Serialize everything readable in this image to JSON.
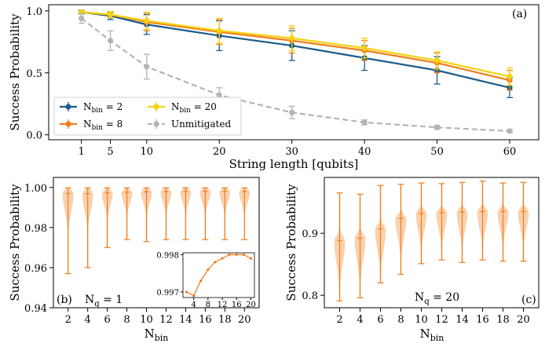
{
  "chart_data": [
    {
      "type": "line",
      "panel_label": "(a)",
      "xlabel": "String length [qubits]",
      "ylabel": "Success Probability",
      "x": [
        1,
        5,
        10,
        20,
        30,
        40,
        50,
        60
      ],
      "xticks": [
        "1",
        "5",
        "10",
        "20",
        "30",
        "40",
        "50",
        "60"
      ],
      "yticks": [
        "0.0",
        "0.5",
        "1.0"
      ],
      "ylim": [
        -0.04,
        1.05
      ],
      "xlim": [
        -3.5,
        64
      ],
      "legend": "bottom-left",
      "series": [
        {
          "name_main": "N",
          "name_sub": "bin",
          "name_rest": " = 2",
          "color": "#1a5c8c",
          "style": "solid",
          "values": [
            0.99,
            0.96,
            0.89,
            0.8,
            0.72,
            0.62,
            0.52,
            0.38
          ],
          "errors": [
            0.015,
            0.03,
            0.08,
            0.12,
            0.12,
            0.1,
            0.11,
            0.08
          ]
        },
        {
          "name_main": "N",
          "name_sub": "bin",
          "name_rest": " = 8",
          "color": "#f07d1a",
          "style": "solid",
          "values": [
            0.99,
            0.97,
            0.91,
            0.83,
            0.76,
            0.68,
            0.58,
            0.44
          ],
          "errors": [
            0.01,
            0.025,
            0.07,
            0.1,
            0.1,
            0.08,
            0.08,
            0.08
          ]
        },
        {
          "name_main": "N",
          "name_sub": "bin",
          "name_rest": " = 20",
          "color": "#f5d10f",
          "style": "solid",
          "values": [
            0.99,
            0.97,
            0.92,
            0.84,
            0.78,
            0.7,
            0.6,
            0.47
          ],
          "errors": [
            0.01,
            0.025,
            0.07,
            0.1,
            0.1,
            0.08,
            0.07,
            0.07
          ]
        },
        {
          "name_main": "Unmitigated",
          "name_sub": "",
          "name_rest": "",
          "color": "#b4b4b4",
          "style": "dashed",
          "values": [
            0.94,
            0.76,
            0.55,
            0.32,
            0.18,
            0.1,
            0.06,
            0.03
          ],
          "errors": [
            0.04,
            0.08,
            0.1,
            0.06,
            0.05,
            0.02,
            0.015,
            0.01
          ]
        }
      ]
    },
    {
      "type": "violin",
      "panel_label": "(b)",
      "annotation_main": "N",
      "annotation_sub": "q",
      "annotation_rest": " = 1",
      "xlabel_main": "N",
      "xlabel_sub": "bin",
      "ylabel": "Success Probability",
      "color": "#f07d1a",
      "fill": "#f9c9a0",
      "x": [
        2,
        4,
        6,
        8,
        10,
        12,
        14,
        16,
        18,
        20
      ],
      "xticks": [
        "2",
        "4",
        "6",
        "8",
        "10",
        "12",
        "14",
        "16",
        "18",
        "20"
      ],
      "yticks": [
        "0.94",
        "0.96",
        "0.98",
        "1.00"
      ],
      "ylim": [
        0.94,
        1.005
      ],
      "xlim": [
        0.5,
        21.5
      ],
      "max": [
        0.9998,
        0.9998,
        0.9998,
        0.9998,
        0.9998,
        0.9998,
        0.9998,
        0.9998,
        0.9998,
        0.9998
      ],
      "min": [
        0.957,
        0.96,
        0.97,
        0.974,
        0.973,
        0.974,
        0.974,
        0.974,
        0.974,
        0.974
      ],
      "median": [
        0.997,
        0.9969,
        0.9973,
        0.9976,
        0.9978,
        0.9979,
        0.998,
        0.998,
        0.998,
        0.9979
      ],
      "inset": {
        "type": "line",
        "x": [
          2,
          4,
          6,
          8,
          10,
          12,
          14,
          16,
          18,
          20
        ],
        "values": [
          0.997,
          0.9969,
          0.9973,
          0.9976,
          0.9978,
          0.9979,
          0.998,
          0.998,
          0.998,
          0.9979
        ],
        "xticks": [
          "4",
          "8",
          "12",
          "16",
          "20"
        ],
        "yticks": [
          "0.997",
          "0.998"
        ],
        "ylim": [
          0.99685,
          0.99805
        ],
        "xlim": [
          1,
          21
        ]
      }
    },
    {
      "type": "violin",
      "panel_label": "(c)",
      "annotation_main": "N",
      "annotation_sub": "q",
      "annotation_rest": " = 20",
      "xlabel_main": "N",
      "xlabel_sub": "bin",
      "ylabel": "Success Probability",
      "color": "#f07d1a",
      "fill": "#f9c9a0",
      "x": [
        2,
        4,
        6,
        8,
        10,
        12,
        14,
        16,
        18,
        20
      ],
      "xticks": [
        "2",
        "4",
        "6",
        "8",
        "10",
        "12",
        "14",
        "16",
        "18",
        "20"
      ],
      "yticks": [
        "0.8",
        "0.9"
      ],
      "ylim": [
        0.78,
        0.99
      ],
      "xlim": [
        0.5,
        21.5
      ],
      "max": [
        0.965,
        0.963,
        0.977,
        0.979,
        0.981,
        0.98,
        0.982,
        0.984,
        0.981,
        0.982
      ],
      "min": [
        0.791,
        0.796,
        0.82,
        0.834,
        0.851,
        0.857,
        0.853,
        0.857,
        0.855,
        0.855
      ],
      "median": [
        0.888,
        0.892,
        0.907,
        0.924,
        0.932,
        0.933,
        0.934,
        0.935,
        0.935,
        0.935
      ]
    }
  ]
}
